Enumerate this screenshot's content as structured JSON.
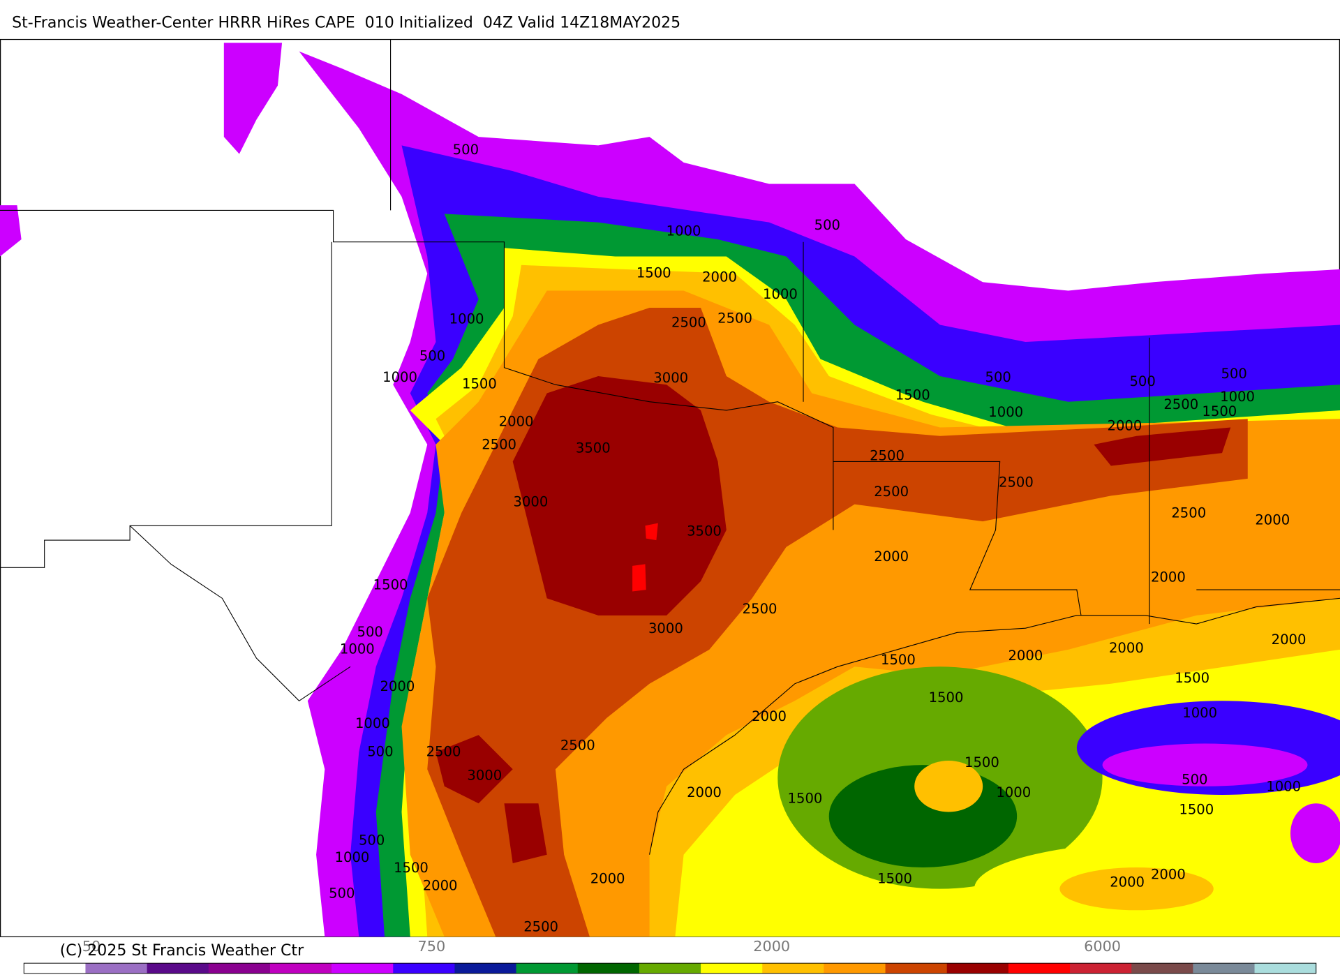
{
  "header": {
    "title": "St-Francis Weather-Center HRRR HiRes CAPE  010 Initialized  04Z Valid 14Z18MAY2025"
  },
  "map": {
    "contour_labels": [
      "500",
      "1000",
      "500",
      "1500",
      "2000",
      "1000",
      "2500",
      "2500",
      "1000",
      "500",
      "1000",
      "1500",
      "3000",
      "1500",
      "500",
      "500",
      "500",
      "1000",
      "1000",
      "1500",
      "2500",
      "2000",
      "2000",
      "2500",
      "3500",
      "2500",
      "2500",
      "2500",
      "3000",
      "3500",
      "2500",
      "2000",
      "2000",
      "2000",
      "1500",
      "2500",
      "3000",
      "500",
      "1000",
      "2000",
      "2000",
      "2000",
      "1500",
      "2000",
      "1500",
      "1500",
      "2000",
      "1000",
      "1000",
      "500",
      "2500",
      "2500",
      "3000",
      "1500",
      "500",
      "1000",
      "2000",
      "1500",
      "1000",
      "1500",
      "500",
      "1000",
      "1500",
      "2000",
      "2000",
      "1500",
      "2000",
      "2000",
      "500",
      "2500"
    ]
  },
  "colorbar": {
    "colors": [
      "#ffffff",
      "#9b6fc4",
      "#5a0a8a",
      "#8a0090",
      "#c000c0",
      "#cc00ff",
      "#3a00ff",
      "#0a1a9a",
      "#009933",
      "#006600",
      "#66aa00",
      "#ffff00",
      "#ffc000",
      "#ff9900",
      "#cc4400",
      "#990000",
      "#ff0000",
      "#cc2233",
      "#7a4a4a",
      "#7a8a99",
      "#aadddd"
    ],
    "labels": [
      "50",
      "750",
      "2000",
      "6000"
    ]
  },
  "footer": {
    "copyright": "(C) 2025 St Francis Weather Ctr"
  }
}
